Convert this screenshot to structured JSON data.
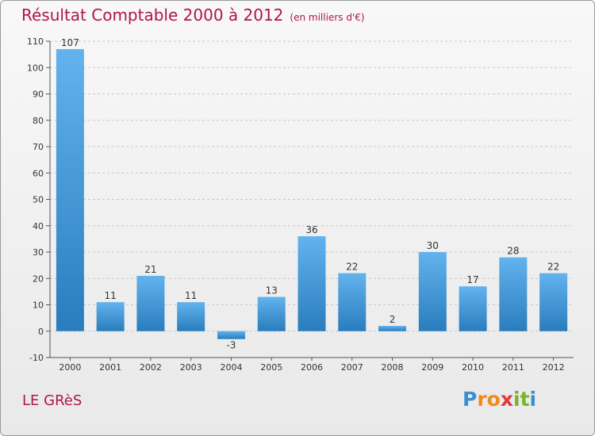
{
  "title": "Résultat Comptable 2000 à 2012",
  "subtitle": "(en milliers d'€)",
  "commune": "LE GRèS",
  "logo": {
    "letters": [
      "P",
      "r",
      "o",
      "x",
      "i",
      "t",
      "i"
    ],
    "colors": [
      "#3a8fd0",
      "#f08a1c",
      "#f08a1c",
      "#e03a3a",
      "#7ab32e",
      "#7ab32e",
      "#3a8fd0"
    ]
  },
  "colors": {
    "bar_light": "#62b3ee",
    "bar_dark": "#2a7dbd",
    "title": "#b0154a"
  },
  "chart_data": {
    "type": "bar",
    "title": "Résultat Comptable 2000 à 2012",
    "categories": [
      "2000",
      "2001",
      "2002",
      "2003",
      "2004",
      "2005",
      "2006",
      "2007",
      "2008",
      "2009",
      "2010",
      "2011",
      "2012"
    ],
    "values": [
      107,
      11,
      21,
      11,
      -3,
      13,
      36,
      22,
      2,
      30,
      17,
      28,
      22
    ],
    "value_labels": [
      "107",
      "11",
      "21",
      "11",
      "-3",
      "13",
      "36",
      "22",
      "2",
      "30",
      "17",
      "28",
      "22"
    ],
    "yticks": [
      -10,
      0,
      10,
      20,
      30,
      40,
      50,
      60,
      70,
      80,
      90,
      100,
      110
    ],
    "ytick_labels": [
      "-10",
      "0",
      "10",
      "20",
      "30",
      "40",
      "50",
      "60",
      "70",
      "80",
      "90",
      "100",
      "110"
    ],
    "ylim": [
      -10,
      110
    ],
    "grid": true,
    "xlabel": "",
    "ylabel": ""
  }
}
